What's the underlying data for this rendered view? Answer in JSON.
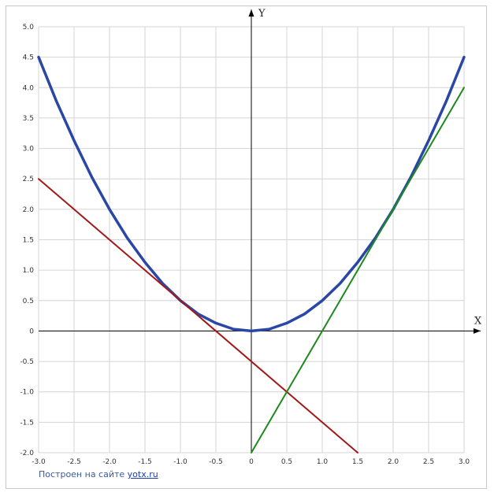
{
  "chart_data": {
    "type": "line",
    "title": "",
    "xlabel": "X",
    "ylabel": "Y",
    "xlim": [
      -3.0,
      3.0
    ],
    "ylim": [
      -2.0,
      5.0
    ],
    "grid": true,
    "x_step": 0.5,
    "y_step": 0.5,
    "x_tick_labels": [
      "-3.0",
      "-2.5",
      "-2.0",
      "-1.5",
      "-1.0",
      "-0.5",
      "0",
      "0.5",
      "1.0",
      "1.5",
      "2.0",
      "2.5",
      "3.0"
    ],
    "y_tick_labels": [
      "-2.0",
      "-1.5",
      "-1.0",
      "-0.5",
      "0",
      "0.5",
      "1.0",
      "1.5",
      "2.0",
      "2.5",
      "3.0",
      "3.5",
      "4.0",
      "4.5",
      "5.0"
    ],
    "series": [
      {
        "color": "#2a47a6",
        "x": [
          -3.0,
          -2.75,
          -2.5,
          -2.25,
          -2.0,
          -1.75,
          -1.5,
          -1.25,
          -1.0,
          -0.75,
          -0.5,
          -0.25,
          0.0,
          0.25,
          0.5,
          0.75,
          1.0,
          1.25,
          1.5,
          1.75,
          2.0,
          2.25,
          2.5,
          2.75,
          3.0
        ],
        "y": [
          4.5,
          3.78,
          3.13,
          2.53,
          2.0,
          1.53,
          1.13,
          0.78,
          0.5,
          0.28,
          0.13,
          0.03,
          0.0,
          0.03,
          0.13,
          0.28,
          0.5,
          0.78,
          1.13,
          1.53,
          2.0,
          2.53,
          3.13,
          3.78,
          4.5
        ]
      },
      {
        "color": "#a01a1a",
        "x": [
          -3.0,
          1.5
        ],
        "y": [
          2.5,
          -2.0
        ]
      },
      {
        "color": "#1e8a1e",
        "x": [
          0.0,
          3.0
        ],
        "y": [
          -2.0,
          4.0
        ]
      }
    ]
  },
  "footer": {
    "credit_text": "Построен на сайте",
    "credit_link": "yotx.ru"
  }
}
